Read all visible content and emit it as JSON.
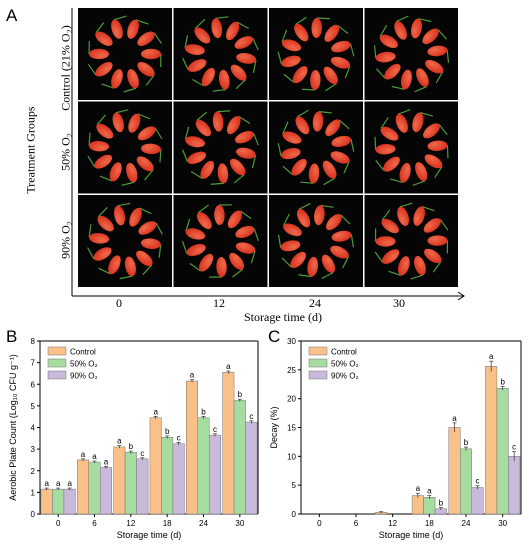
{
  "panel_a": {
    "letter": "A",
    "row_axis_title": "Treatment Groups",
    "rows": [
      {
        "label": "Control (21% O₂)"
      },
      {
        "label": "50% O₂"
      },
      {
        "label": "90% O₂"
      }
    ],
    "columns": [
      "0",
      "12",
      "24",
      "30"
    ],
    "xlabel": "Storage time (d)",
    "colors": {
      "fruit": "#d8321f",
      "fruit_highlight": "#f06a4a",
      "stem": "#4f9a3a",
      "background": "#050505"
    }
  },
  "chart_data": [
    {
      "letter": "B",
      "type": "bar",
      "categories": [
        "0",
        "6",
        "12",
        "18",
        "24",
        "30"
      ],
      "series": [
        {
          "name": "Control",
          "color": "#f9c08a",
          "values": [
            1.15,
            2.5,
            3.1,
            4.45,
            6.15,
            6.55
          ],
          "errors": [
            0.05,
            0.05,
            0.06,
            0.06,
            0.06,
            0.06
          ],
          "letters": [
            "a",
            "a",
            "a",
            "a",
            "a",
            "a"
          ]
        },
        {
          "name": "50% O₂",
          "color": "#a7dca1",
          "values": [
            1.15,
            2.4,
            2.85,
            3.55,
            4.45,
            5.25
          ],
          "errors": [
            0.05,
            0.05,
            0.06,
            0.06,
            0.06,
            0.06
          ],
          "letters": [
            "a",
            "a",
            "b",
            "b",
            "b",
            "b"
          ]
        },
        {
          "name": "90% O₂",
          "color": "#c9badc",
          "values": [
            1.15,
            2.15,
            2.55,
            3.25,
            3.65,
            4.25
          ],
          "errors": [
            0.05,
            0.05,
            0.05,
            0.06,
            0.06,
            0.06
          ],
          "letters": [
            "a",
            "a",
            "c",
            "c",
            "c",
            "c"
          ]
        }
      ],
      "xlabel": "Storage time (d)",
      "ylabel": "Aerobic Plate Count (Log₁₀ CFU g⁻¹)",
      "ylim": [
        0,
        8
      ],
      "yticks": [
        "0",
        "1",
        "2",
        "3",
        "4",
        "5",
        "6",
        "7",
        "8"
      ],
      "legend": "top-left",
      "grid": false
    },
    {
      "letter": "C",
      "type": "bar",
      "categories": [
        "0",
        "6",
        "12",
        "18",
        "24",
        "30"
      ],
      "series": [
        {
          "name": "Control",
          "color": "#f9c08a",
          "values": [
            0,
            0,
            0.3,
            3.2,
            15.0,
            25.6
          ],
          "errors": [
            0,
            0,
            0.1,
            0.4,
            0.8,
            0.9
          ],
          "letters": [
            "",
            "",
            "",
            "a",
            "a",
            "a"
          ]
        },
        {
          "name": "50% O₂",
          "color": "#a7dca1",
          "values": [
            0,
            0,
            0,
            2.9,
            11.3,
            21.8
          ],
          "errors": [
            0,
            0,
            0,
            0.3,
            0.3,
            0.3
          ],
          "letters": [
            "",
            "",
            "",
            "a",
            "b",
            "b"
          ]
        },
        {
          "name": "90% O₂",
          "color": "#c9badc",
          "values": [
            0,
            0,
            0,
            0.9,
            4.6,
            10.0
          ],
          "errors": [
            0,
            0,
            0,
            0.2,
            0.3,
            0.8
          ],
          "letters": [
            "",
            "",
            "",
            "b",
            "c",
            "c"
          ]
        }
      ],
      "xlabel": "Storage time (d)",
      "ylabel": "Decay (%)",
      "ylim": [
        0,
        30
      ],
      "yticks": [
        "0",
        "5",
        "10",
        "15",
        "20",
        "25",
        "30"
      ],
      "legend": "top-left",
      "grid": false
    }
  ]
}
